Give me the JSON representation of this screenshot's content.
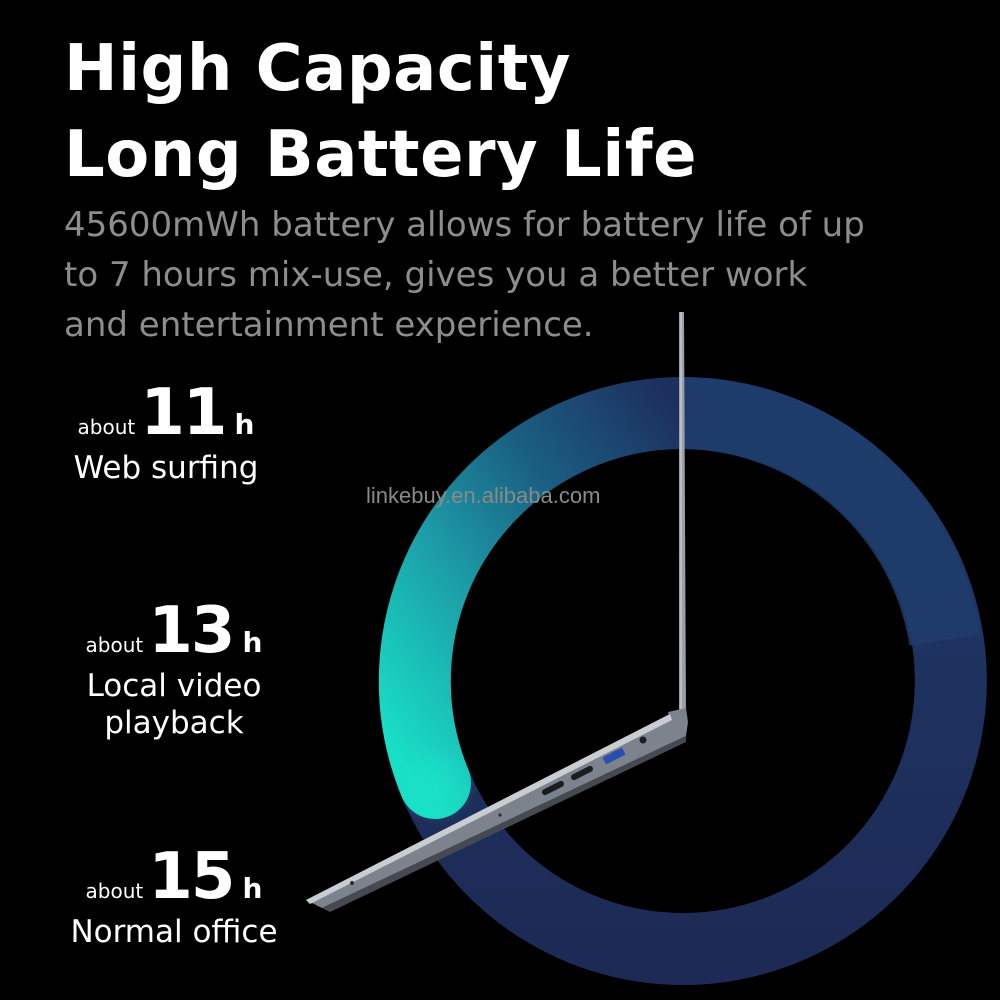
{
  "headline": {
    "line1": "High Capacity",
    "line2": "Long Battery Life"
  },
  "description": {
    "line1": "45600mWh battery allows for battery life of up",
    "line2": "to 7 hours mix-use, gives you a better work",
    "line3": "and entertainment experience."
  },
  "stats": [
    {
      "prefix": "about",
      "value": "11",
      "unit": "h",
      "label_lines": [
        "Web surfing"
      ]
    },
    {
      "prefix": "about",
      "value": "13",
      "unit": "h",
      "label_lines": [
        "Local video",
        "playback"
      ]
    },
    {
      "prefix": "about",
      "value": "15",
      "unit": "h",
      "label_lines": [
        "Normal office"
      ]
    }
  ],
  "watermark": "linkebuy.en.alibaba.com",
  "colors": {
    "background": "#000000",
    "ring_start": "#19d6c0",
    "ring_mid": "#1a8090",
    "ring_end": "#1e2a55",
    "description": "#8d8d8d"
  }
}
